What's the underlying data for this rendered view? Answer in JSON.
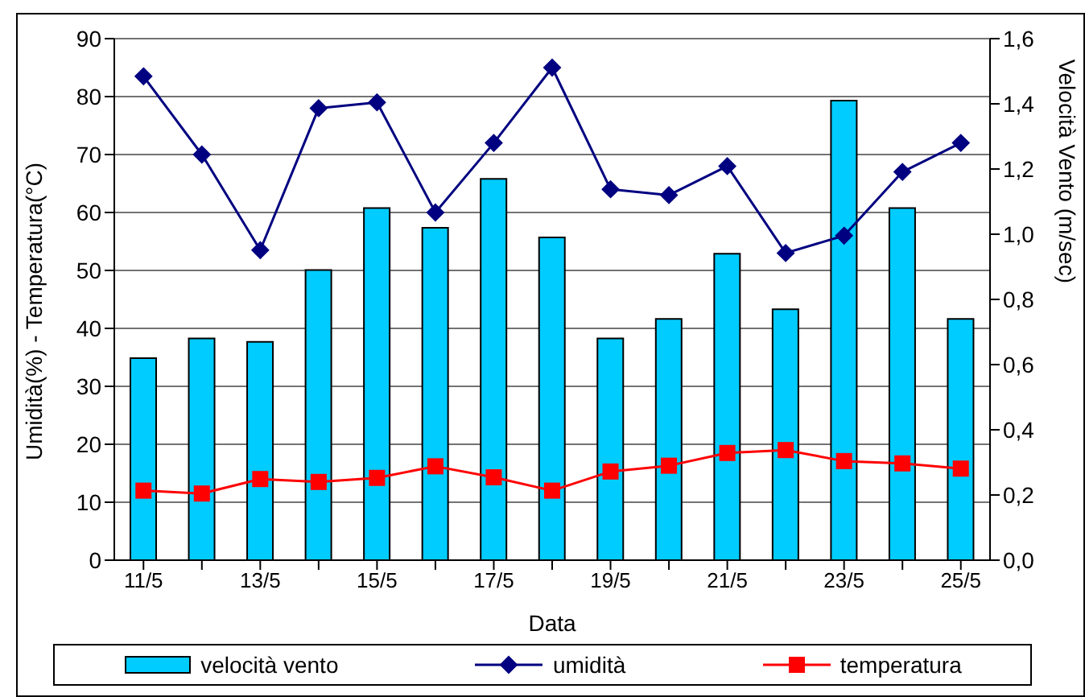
{
  "chart_data": {
    "type": "bar",
    "xlabel": "Data",
    "ylabel": "Umidità(%) - Temperatura(°C)",
    "y2label": "Velocità Vento (m/sec)",
    "categories": [
      "11/5",
      null,
      "13/5",
      null,
      "15/5",
      null,
      "17/5",
      null,
      "19/5",
      null,
      "21/5",
      null,
      "23/5",
      null,
      "25/5"
    ],
    "series": [
      {
        "name": "velocità vento",
        "axis": "y2",
        "color": "#00ccff",
        "values": [
          0.62,
          0.68,
          0.67,
          0.89,
          1.08,
          1.02,
          1.17,
          0.99,
          0.68,
          0.74,
          0.94,
          0.77,
          1.41,
          1.08,
          0.74
        ]
      },
      {
        "name": "umidità",
        "type": "line",
        "marker": "diamond",
        "color": "#000080",
        "values": [
          83.5,
          70,
          53.5,
          78,
          79,
          60,
          72,
          85,
          64,
          63,
          68,
          53,
          56,
          67,
          72
        ]
      },
      {
        "name": "temperatura",
        "type": "line",
        "marker": "square",
        "color": "#ff0000",
        "values": [
          12,
          11.5,
          14,
          13.5,
          14.2,
          16.2,
          14.3,
          12,
          15.3,
          16.3,
          18.5,
          19,
          17.1,
          16.7,
          15.8
        ]
      }
    ],
    "ylim": [
      0,
      90
    ],
    "yticks": [
      0,
      10,
      20,
      30,
      40,
      50,
      60,
      70,
      80,
      90
    ],
    "y2lim": [
      0,
      1.6
    ],
    "y2ticks": [
      {
        "value": 0,
        "label": "0,0"
      },
      {
        "value": 0.2,
        "label": "0,2"
      },
      {
        "value": 0.4,
        "label": "0,4"
      },
      {
        "value": 0.6,
        "label": "0,6"
      },
      {
        "value": 0.8,
        "label": "0,8"
      },
      {
        "value": 1.0,
        "label": "1,0"
      },
      {
        "value": 1.2,
        "label": "1,2"
      },
      {
        "value": 1.4,
        "label": "1,4"
      },
      {
        "value": 1.6,
        "label": "1,6"
      }
    ],
    "grid": "y",
    "legend": "bottom"
  }
}
